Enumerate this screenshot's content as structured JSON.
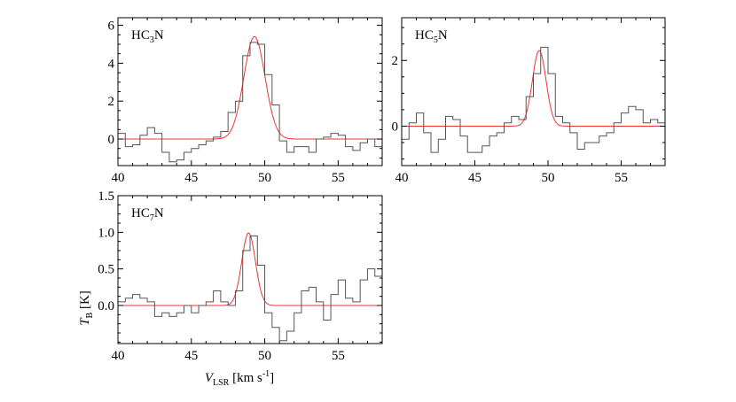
{
  "x_axis_label": {
    "main": "V",
    "sub": "LSR",
    "unit": " [km s",
    "sup": "-1",
    "close": "]"
  },
  "y_axis_label": {
    "main": "T",
    "sub": "B",
    "unit": " [K]"
  },
  "chart_data": [
    {
      "type": "line",
      "panel": "HC3N",
      "label": {
        "pre": "HC",
        "sub": "3",
        "post": "N"
      },
      "xlim": [
        40,
        58
      ],
      "ylim": [
        -1.4,
        6.4
      ],
      "xticks": [
        40,
        45,
        50,
        55
      ],
      "yticks": [
        0,
        2,
        4,
        6
      ],
      "xtick_labels": [
        "40",
        "45",
        "50",
        "55"
      ],
      "ytick_labels": [
        "0",
        "2",
        "4",
        "6"
      ],
      "observed": {
        "color": "#555555",
        "bin_edges": [
          40,
          40.5,
          41,
          41.5,
          42,
          42.5,
          43,
          43.5,
          44,
          44.5,
          45,
          45.5,
          46,
          46.5,
          47,
          47.5,
          48,
          48.5,
          49,
          49.5,
          50,
          50.5,
          51,
          51.5,
          52,
          52.5,
          53,
          53.5,
          54,
          54.5,
          55,
          55.5,
          56,
          56.5,
          57,
          57.5,
          58
        ],
        "values": [
          0.3,
          -0.4,
          -0.3,
          0.2,
          0.6,
          0.3,
          -0.7,
          -1.2,
          -1.1,
          -0.7,
          -0.5,
          -0.3,
          -0.1,
          0.1,
          0.4,
          1.4,
          2.0,
          4.4,
          5.1,
          5.0,
          3.4,
          1.8,
          -0.1,
          -0.7,
          -0.4,
          -0.4,
          -0.7,
          0.0,
          0.1,
          0.3,
          0.2,
          -0.4,
          -0.6,
          -0.2,
          0.0,
          -0.4
        ]
      },
      "gaussian_fit": {
        "color": "#ee3333",
        "amplitude": 5.4,
        "center": 49.3,
        "fwhm": 1.7,
        "baseline": 0
      }
    },
    {
      "type": "line",
      "panel": "HC5N",
      "label": {
        "pre": "HC",
        "sub": "5",
        "post": "N"
      },
      "xlim": [
        40,
        58
      ],
      "ylim": [
        -1.2,
        3.3
      ],
      "xticks": [
        40,
        45,
        50,
        55
      ],
      "yticks": [
        0,
        2
      ],
      "xtick_labels": [
        "40",
        "45",
        "50",
        "55"
      ],
      "ytick_labels": [
        "0",
        "2"
      ],
      "observed": {
        "color": "#555555",
        "bin_edges": [
          40,
          40.5,
          41,
          41.5,
          42,
          42.5,
          43,
          43.5,
          44,
          44.5,
          45,
          45.5,
          46,
          46.5,
          47,
          47.5,
          48,
          48.5,
          49,
          49.5,
          50,
          50.5,
          51,
          51.5,
          52,
          52.5,
          53,
          53.5,
          54,
          54.5,
          55,
          55.5,
          56,
          56.5,
          57,
          57.5,
          58
        ],
        "values": [
          -0.4,
          0.1,
          0.4,
          -0.2,
          -0.8,
          -0.4,
          0.3,
          0.2,
          -0.3,
          -0.8,
          -0.8,
          -0.6,
          -0.3,
          -0.2,
          0.1,
          0.3,
          0.2,
          0.9,
          1.6,
          2.4,
          1.6,
          0.3,
          0.1,
          -0.2,
          -0.7,
          -0.5,
          -0.5,
          -0.3,
          -0.2,
          0.1,
          0.4,
          0.6,
          0.5,
          0.1,
          0.2,
          0.1
        ]
      },
      "gaussian_fit": {
        "color": "#ee3333",
        "amplitude": 2.3,
        "center": 49.4,
        "fwhm": 1.1,
        "baseline": 0
      }
    },
    {
      "type": "line",
      "panel": "HC7N",
      "label": {
        "pre": "HC",
        "sub": "7",
        "post": "N"
      },
      "xlim": [
        40,
        58
      ],
      "ylim": [
        -0.52,
        1.5
      ],
      "xticks": [
        40,
        45,
        50,
        55
      ],
      "yticks": [
        0.0,
        0.5,
        1.0,
        1.5
      ],
      "xtick_labels": [
        "40",
        "45",
        "50",
        "55"
      ],
      "ytick_labels": [
        "0.0",
        "0.5",
        "1.0",
        "1.5"
      ],
      "observed": {
        "color": "#555555",
        "bin_edges": [
          40,
          40.5,
          41,
          41.5,
          42,
          42.5,
          43,
          43.5,
          44,
          44.5,
          45,
          45.5,
          46,
          46.5,
          47,
          47.5,
          48,
          48.5,
          49,
          49.5,
          50,
          50.5,
          51,
          51.5,
          52,
          52.5,
          53,
          53.5,
          54,
          54.5,
          55,
          55.5,
          56,
          56.5,
          57,
          57.5,
          58
        ],
        "values": [
          0.05,
          0.1,
          0.15,
          0.1,
          0.05,
          -0.15,
          -0.1,
          -0.15,
          -0.1,
          0.0,
          -0.1,
          0.0,
          0.05,
          0.2,
          0.05,
          0.0,
          0.2,
          0.75,
          0.95,
          0.55,
          -0.1,
          -0.3,
          -0.48,
          -0.35,
          -0.1,
          0.2,
          0.25,
          0.05,
          -0.2,
          0.15,
          0.35,
          0.1,
          0.05,
          0.35,
          0.5,
          0.4
        ]
      },
      "gaussian_fit": {
        "color": "#ee3333",
        "amplitude": 0.99,
        "center": 48.9,
        "fwhm": 1.1,
        "baseline": 0
      }
    }
  ]
}
